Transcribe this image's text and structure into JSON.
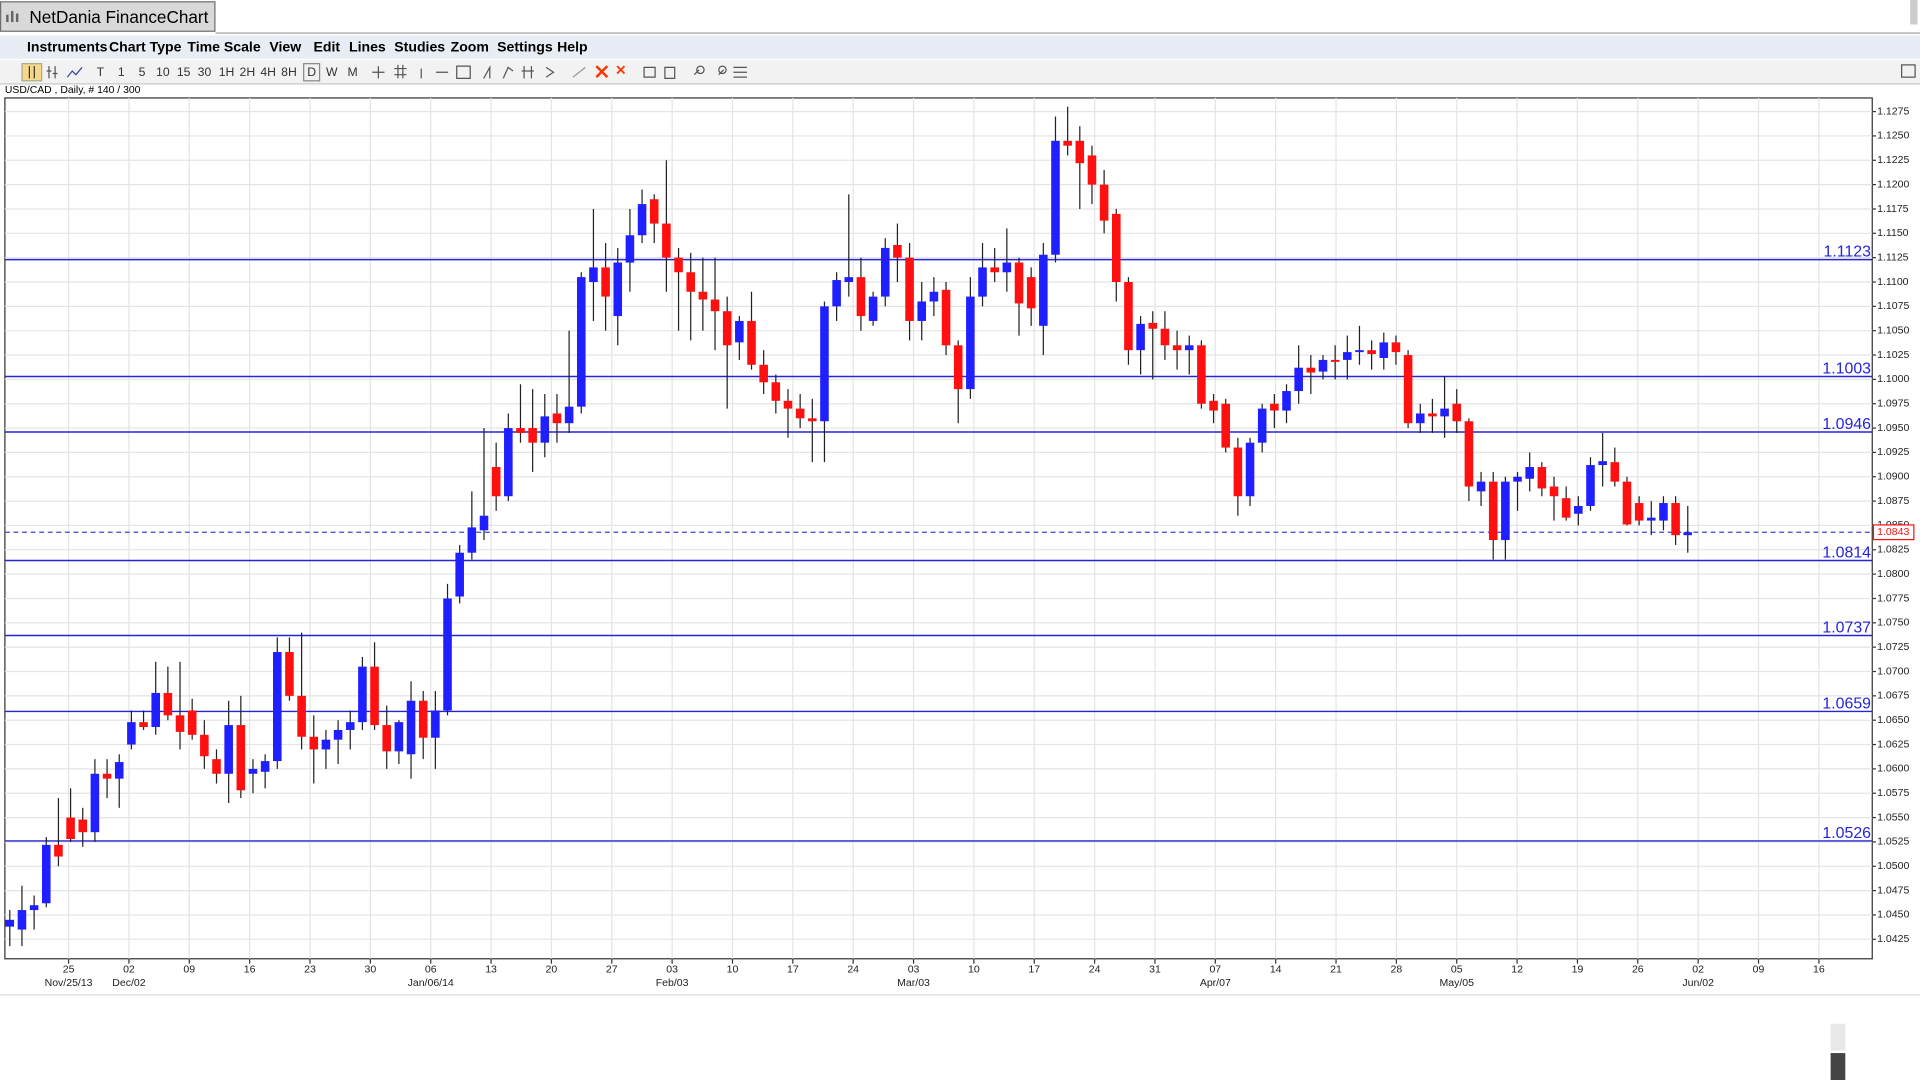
{
  "app_title": "NetDania FinanceChart",
  "menu": [
    "Instruments",
    "Chart Type",
    "Time Scale",
    "View",
    "Edit",
    "Lines",
    "Studies",
    "Zoom",
    "Settings",
    "Help"
  ],
  "toolbar": [
    "T",
    "1",
    "5",
    "10",
    "15",
    "30",
    "1H",
    "2H",
    "4H",
    "8H",
    "D",
    "W",
    "M"
  ],
  "chart_data": {
    "type": "candlestick",
    "title": "USD/CAD , Daily, # 140 / 300",
    "up_color": "#1f1fff",
    "down_color": "#ff1010",
    "level_color": "#2424d8",
    "last_color": "#ff1010",
    "grid": true,
    "ylim": [
      1.0405,
      1.1289
    ],
    "yticks": [
      1.0425,
      {
        "value": 1.045,
        "label": "1.0450"
      },
      1.0475,
      {
        "value": 1.05,
        "label": "1.0500"
      },
      1.0525,
      {
        "value": 1.055,
        "label": "1.0550"
      },
      1.0575,
      {
        "value": 1.06,
        "label": "1.0600"
      },
      1.0625,
      {
        "value": 1.065,
        "label": "1.0650"
      },
      1.0675,
      {
        "value": 1.07,
        "label": "1.0700"
      },
      1.0725,
      {
        "value": 1.075,
        "label": "1.0750"
      },
      1.0775,
      {
        "value": 1.08,
        "label": "1.0800"
      },
      1.0825,
      {
        "value": 1.085,
        "label": "1.0850"
      },
      1.0875,
      {
        "value": 1.09,
        "label": "1.0900"
      },
      1.0925,
      {
        "value": 1.095,
        "label": "1.0950"
      },
      1.0975,
      {
        "value": 1.1,
        "label": "1.1000"
      },
      1.1025,
      {
        "value": 1.105,
        "label": "1.1050"
      },
      1.1075,
      {
        "value": 1.11,
        "label": "1.1100"
      },
      1.1125,
      {
        "value": 1.115,
        "label": "1.1150"
      },
      1.1175,
      {
        "value": 1.12,
        "label": "1.1200"
      },
      1.1225,
      {
        "value": 1.125,
        "label": "1.1250"
      },
      1.1275
    ],
    "xtick_labels": [
      "25",
      "02",
      "09",
      "16",
      "23",
      "30",
      "06",
      "13",
      "20",
      "27",
      "03",
      "10",
      "17",
      "24",
      "03",
      "10",
      "17",
      "24",
      "31",
      "07",
      "14",
      "21",
      "28",
      "05",
      "12",
      "19",
      "26",
      "02",
      "09",
      "16"
    ],
    "xtick_sublabels": [
      "Nov/25/13",
      "Dec/02",
      "Jan/06/14",
      "Feb/03",
      "Mar/03",
      "Apr/07",
      "May/05",
      "Jun/02"
    ],
    "levels": [
      1.1123,
      1.1003,
      1.0946,
      1.0814,
      1.0737,
      1.0659,
      1.0526
    ],
    "last": 1.0843,
    "candles": [
      {
        "open": 1.0438,
        "high": 1.0455,
        "low": 1.0418,
        "close": 1.0445
      },
      {
        "open": 1.0435,
        "high": 1.048,
        "low": 1.0418,
        "close": 1.0455
      },
      {
        "open": 1.0455,
        "high": 1.047,
        "low": 1.0435,
        "close": 1.046
      },
      {
        "open": 1.0462,
        "high": 1.053,
        "low": 1.0458,
        "close": 1.0522
      },
      {
        "open": 1.0522,
        "high": 1.057,
        "low": 1.05,
        "close": 1.051
      },
      {
        "open": 1.055,
        "high": 1.058,
        "low": 1.0525,
        "close": 1.0528
      },
      {
        "open": 1.0548,
        "high": 1.056,
        "low": 1.052,
        "close": 1.0535
      },
      {
        "open": 1.0535,
        "high": 1.061,
        "low": 1.0525,
        "close": 1.0595
      },
      {
        "open": 1.0595,
        "high": 1.061,
        "low": 1.057,
        "close": 1.059
      },
      {
        "open": 1.059,
        "high": 1.0615,
        "low": 1.056,
        "close": 1.0607
      },
      {
        "open": 1.0625,
        "high": 1.066,
        "low": 1.062,
        "close": 1.0648
      },
      {
        "open": 1.0648,
        "high": 1.066,
        "low": 1.064,
        "close": 1.0643
      },
      {
        "open": 1.0643,
        "high": 1.071,
        "low": 1.0635,
        "close": 1.0678
      },
      {
        "open": 1.0678,
        "high": 1.0705,
        "low": 1.065,
        "close": 1.0655
      },
      {
        "open": 1.0655,
        "high": 1.071,
        "low": 1.062,
        "close": 1.0638
      },
      {
        "open": 1.066,
        "high": 1.0672,
        "low": 1.063,
        "close": 1.0635
      },
      {
        "open": 1.0635,
        "high": 1.065,
        "low": 1.06,
        "close": 1.0613
      },
      {
        "open": 1.061,
        "high": 1.062,
        "low": 1.0585,
        "close": 1.0595
      },
      {
        "open": 1.0595,
        "high": 1.067,
        "low": 1.0565,
        "close": 1.0645
      },
      {
        "open": 1.0645,
        "high": 1.0675,
        "low": 1.057,
        "close": 1.0578
      },
      {
        "open": 1.0595,
        "high": 1.061,
        "low": 1.0575,
        "close": 1.06
      },
      {
        "open": 1.0597,
        "high": 1.0615,
        "low": 1.058,
        "close": 1.0608
      },
      {
        "open": 1.0608,
        "high": 1.0735,
        "low": 1.06,
        "close": 1.072
      },
      {
        "open": 1.072,
        "high": 1.0735,
        "low": 1.067,
        "close": 1.0675
      },
      {
        "open": 1.0675,
        "high": 1.074,
        "low": 1.062,
        "close": 1.0633
      },
      {
        "open": 1.0633,
        "high": 1.0655,
        "low": 1.0585,
        "close": 1.062
      },
      {
        "open": 1.062,
        "high": 1.064,
        "low": 1.06,
        "close": 1.063
      },
      {
        "open": 1.063,
        "high": 1.065,
        "low": 1.0605,
        "close": 1.064
      },
      {
        "open": 1.064,
        "high": 1.066,
        "low": 1.062,
        "close": 1.0648
      },
      {
        "open": 1.0648,
        "high": 1.0715,
        "low": 1.064,
        "close": 1.0705
      },
      {
        "open": 1.0705,
        "high": 1.073,
        "low": 1.064,
        "close": 1.0645
      },
      {
        "open": 1.0645,
        "high": 1.0665,
        "low": 1.06,
        "close": 1.0618
      },
      {
        "open": 1.0618,
        "high": 1.065,
        "low": 1.0605,
        "close": 1.0648
      },
      {
        "open": 1.0615,
        "high": 1.069,
        "low": 1.059,
        "close": 1.067
      },
      {
        "open": 1.067,
        "high": 1.068,
        "low": 1.061,
        "close": 1.0632
      },
      {
        "open": 1.0632,
        "high": 1.068,
        "low": 1.06,
        "close": 1.066
      },
      {
        "open": 1.066,
        "high": 1.079,
        "low": 1.0655,
        "close": 1.0775
      },
      {
        "open": 1.0777,
        "high": 1.083,
        "low": 1.077,
        "close": 1.0822
      },
      {
        "open": 1.0822,
        "high": 1.0885,
        "low": 1.0815,
        "close": 1.0848
      },
      {
        "open": 1.0845,
        "high": 1.095,
        "low": 1.0835,
        "close": 1.086
      },
      {
        "open": 1.091,
        "high": 1.0935,
        "low": 1.0865,
        "close": 1.088
      },
      {
        "open": 1.088,
        "high": 1.0965,
        "low": 1.0875,
        "close": 1.095
      },
      {
        "open": 1.095,
        "high": 1.0995,
        "low": 1.0935,
        "close": 1.0945
      },
      {
        "open": 1.095,
        "high": 1.099,
        "low": 1.0905,
        "close": 1.0935
      },
      {
        "open": 1.0935,
        "high": 1.0985,
        "low": 1.092,
        "close": 1.0962
      },
      {
        "open": 1.0965,
        "high": 1.0985,
        "low": 1.0935,
        "close": 1.0955
      },
      {
        "open": 1.0955,
        "high": 1.105,
        "low": 1.0945,
        "close": 1.0972
      },
      {
        "open": 1.0972,
        "high": 1.111,
        "low": 1.0965,
        "close": 1.1105
      },
      {
        "open": 1.11,
        "high": 1.1175,
        "low": 1.106,
        "close": 1.1115
      },
      {
        "open": 1.1115,
        "high": 1.114,
        "low": 1.105,
        "close": 1.1085
      },
      {
        "open": 1.1065,
        "high": 1.1135,
        "low": 1.1035,
        "close": 1.112
      },
      {
        "open": 1.112,
        "high": 1.1175,
        "low": 1.109,
        "close": 1.1148
      },
      {
        "open": 1.1148,
        "high": 1.1195,
        "low": 1.114,
        "close": 1.118
      },
      {
        "open": 1.1185,
        "high": 1.119,
        "low": 1.114,
        "close": 1.116
      },
      {
        "open": 1.116,
        "high": 1.1225,
        "low": 1.109,
        "close": 1.1125
      },
      {
        "open": 1.1125,
        "high": 1.1135,
        "low": 1.105,
        "close": 1.111
      },
      {
        "open": 1.111,
        "high": 1.113,
        "low": 1.104,
        "close": 1.109
      },
      {
        "open": 1.109,
        "high": 1.1125,
        "low": 1.105,
        "close": 1.1082
      },
      {
        "open": 1.1082,
        "high": 1.1125,
        "low": 1.103,
        "close": 1.107
      },
      {
        "open": 1.107,
        "high": 1.1085,
        "low": 1.097,
        "close": 1.1035
      },
      {
        "open": 1.1038,
        "high": 1.1065,
        "low": 1.102,
        "close": 1.106
      },
      {
        "open": 1.106,
        "high": 1.109,
        "low": 1.101,
        "close": 1.1015
      },
      {
        "open": 1.1015,
        "high": 1.103,
        "low": 1.0985,
        "close": 1.0997
      },
      {
        "open": 1.0997,
        "high": 1.1005,
        "low": 1.0965,
        "close": 1.0978
      },
      {
        "open": 1.0978,
        "high": 1.099,
        "low": 1.094,
        "close": 1.097
      },
      {
        "open": 1.097,
        "high": 1.0985,
        "low": 1.095,
        "close": 1.096
      },
      {
        "open": 1.096,
        "high": 1.098,
        "low": 1.0915,
        "close": 1.0957
      },
      {
        "open": 1.0957,
        "high": 1.108,
        "low": 1.0915,
        "close": 1.1075
      },
      {
        "open": 1.1075,
        "high": 1.111,
        "low": 1.106,
        "close": 1.1102
      },
      {
        "open": 1.11,
        "high": 1.119,
        "low": 1.1085,
        "close": 1.1105
      },
      {
        "open": 1.1105,
        "high": 1.1125,
        "low": 1.105,
        "close": 1.1065
      },
      {
        "open": 1.106,
        "high": 1.109,
        "low": 1.1055,
        "close": 1.1085
      },
      {
        "open": 1.1085,
        "high": 1.1145,
        "low": 1.1075,
        "close": 1.1135
      },
      {
        "open": 1.1138,
        "high": 1.116,
        "low": 1.11,
        "close": 1.1125
      },
      {
        "open": 1.1125,
        "high": 1.114,
        "low": 1.104,
        "close": 1.106
      },
      {
        "open": 1.106,
        "high": 1.11,
        "low": 1.104,
        "close": 1.108
      },
      {
        "open": 1.108,
        "high": 1.1105,
        "low": 1.1065,
        "close": 1.109
      },
      {
        "open": 1.1092,
        "high": 1.11,
        "low": 1.1025,
        "close": 1.1035
      },
      {
        "open": 1.1035,
        "high": 1.104,
        "low": 1.0955,
        "close": 1.099
      },
      {
        "open": 1.099,
        "high": 1.1105,
        "low": 1.098,
        "close": 1.1085
      },
      {
        "open": 1.1085,
        "high": 1.114,
        "low": 1.1075,
        "close": 1.1115
      },
      {
        "open": 1.1115,
        "high": 1.1135,
        "low": 1.11,
        "close": 1.111
      },
      {
        "open": 1.111,
        "high": 1.1155,
        "low": 1.109,
        "close": 1.112
      },
      {
        "open": 1.112,
        "high": 1.1125,
        "low": 1.1045,
        "close": 1.1078
      },
      {
        "open": 1.1105,
        "high": 1.1115,
        "low": 1.1055,
        "close": 1.1073
      },
      {
        "open": 1.1055,
        "high": 1.114,
        "low": 1.1025,
        "close": 1.1128
      },
      {
        "open": 1.1128,
        "high": 1.127,
        "low": 1.112,
        "close": 1.1245
      },
      {
        "open": 1.1245,
        "high": 1.128,
        "low": 1.123,
        "close": 1.124
      },
      {
        "open": 1.1245,
        "high": 1.126,
        "low": 1.1175,
        "close": 1.1222
      },
      {
        "open": 1.123,
        "high": 1.124,
        "low": 1.118,
        "close": 1.12
      },
      {
        "open": 1.12,
        "high": 1.1215,
        "low": 1.115,
        "close": 1.1163
      },
      {
        "open": 1.117,
        "high": 1.1175,
        "low": 1.108,
        "close": 1.11
      },
      {
        "open": 1.11,
        "high": 1.1105,
        "low": 1.1015,
        "close": 1.103
      },
      {
        "open": 1.103,
        "high": 1.1065,
        "low": 1.1005,
        "close": 1.1057
      },
      {
        "open": 1.1058,
        "high": 1.107,
        "low": 1.1,
        "close": 1.1052
      },
      {
        "open": 1.1052,
        "high": 1.107,
        "low": 1.102,
        "close": 1.1035
      },
      {
        "open": 1.1035,
        "high": 1.105,
        "low": 1.101,
        "close": 1.103
      },
      {
        "open": 1.103,
        "high": 1.1045,
        "low": 1.1005,
        "close": 1.1035
      },
      {
        "open": 1.1035,
        "high": 1.104,
        "low": 1.097,
        "close": 1.0975
      },
      {
        "open": 1.0978,
        "high": 1.0985,
        "low": 1.0955,
        "close": 1.0968
      },
      {
        "open": 1.0975,
        "high": 1.098,
        "low": 1.0925,
        "close": 1.093
      },
      {
        "open": 1.093,
        "high": 1.094,
        "low": 1.086,
        "close": 1.088
      },
      {
        "open": 1.088,
        "high": 1.094,
        "low": 1.087,
        "close": 1.0935
      },
      {
        "open": 1.0935,
        "high": 1.0975,
        "low": 1.0925,
        "close": 1.097
      },
      {
        "open": 1.0975,
        "high": 1.0985,
        "low": 1.095,
        "close": 1.0968
      },
      {
        "open": 1.0968,
        "high": 1.0995,
        "low": 1.0955,
        "close": 1.0988
      },
      {
        "open": 1.0988,
        "high": 1.1035,
        "low": 1.0975,
        "close": 1.1012
      },
      {
        "open": 1.1012,
        "high": 1.1025,
        "low": 1.0985,
        "close": 1.1007
      },
      {
        "open": 1.1008,
        "high": 1.1025,
        "low": 1.1,
        "close": 1.102
      },
      {
        "open": 1.102,
        "high": 1.1035,
        "low": 1.1,
        "close": 1.1018
      },
      {
        "open": 1.102,
        "high": 1.1045,
        "low": 1.1,
        "close": 1.1028
      },
      {
        "open": 1.1028,
        "high": 1.1055,
        "low": 1.1015,
        "close": 1.103
      },
      {
        "open": 1.103,
        "high": 1.104,
        "low": 1.101,
        "close": 1.1026
      },
      {
        "open": 1.1022,
        "high": 1.1048,
        "low": 1.101,
        "close": 1.1038
      },
      {
        "open": 1.1038,
        "high": 1.1045,
        "low": 1.1015,
        "close": 1.1028
      },
      {
        "open": 1.1025,
        "high": 1.103,
        "low": 1.095,
        "close": 1.0955
      },
      {
        "open": 1.0955,
        "high": 1.0975,
        "low": 1.0945,
        "close": 1.0965
      },
      {
        "open": 1.0965,
        "high": 1.098,
        "low": 1.0945,
        "close": 1.0962
      },
      {
        "open": 1.0962,
        "high": 1.1003,
        "low": 1.094,
        "close": 1.097
      },
      {
        "open": 1.0975,
        "high": 1.099,
        "low": 1.0945,
        "close": 1.0957
      },
      {
        "open": 1.0957,
        "high": 1.096,
        "low": 1.0875,
        "close": 1.089
      },
      {
        "open": 1.0885,
        "high": 1.0905,
        "low": 1.087,
        "close": 1.0895
      },
      {
        "open": 1.0895,
        "high": 1.0905,
        "low": 1.0815,
        "close": 1.0835
      },
      {
        "open": 1.0835,
        "high": 1.09,
        "low": 1.0815,
        "close": 1.0895
      },
      {
        "open": 1.0895,
        "high": 1.0905,
        "low": 1.0865,
        "close": 1.09
      },
      {
        "open": 1.0898,
        "high": 1.0925,
        "low": 1.0885,
        "close": 1.091
      },
      {
        "open": 1.091,
        "high": 1.0915,
        "low": 1.088,
        "close": 1.0888
      },
      {
        "open": 1.089,
        "high": 1.09,
        "low": 1.0855,
        "close": 1.088
      },
      {
        "open": 1.0878,
        "high": 1.089,
        "low": 1.0855,
        "close": 1.0858
      },
      {
        "open": 1.0862,
        "high": 1.088,
        "low": 1.085,
        "close": 1.087
      },
      {
        "open": 1.087,
        "high": 1.092,
        "low": 1.0865,
        "close": 1.0912
      },
      {
        "open": 1.0912,
        "high": 1.0945,
        "low": 1.089,
        "close": 1.0916
      },
      {
        "open": 1.0915,
        "high": 1.093,
        "low": 1.089,
        "close": 1.0895
      },
      {
        "open": 1.0895,
        "high": 1.09,
        "low": 1.085,
        "close": 1.0851
      },
      {
        "open": 1.0873,
        "high": 1.088,
        "low": 1.085,
        "close": 1.0855
      },
      {
        "open": 1.0855,
        "high": 1.0875,
        "low": 1.084,
        "close": 1.0858
      },
      {
        "open": 1.0855,
        "high": 1.088,
        "low": 1.0845,
        "close": 1.0873
      },
      {
        "open": 1.0873,
        "high": 1.088,
        "low": 1.083,
        "close": 1.084
      },
      {
        "open": 1.084,
        "high": 1.087,
        "low": 1.0822,
        "close": 1.0843
      }
    ]
  }
}
